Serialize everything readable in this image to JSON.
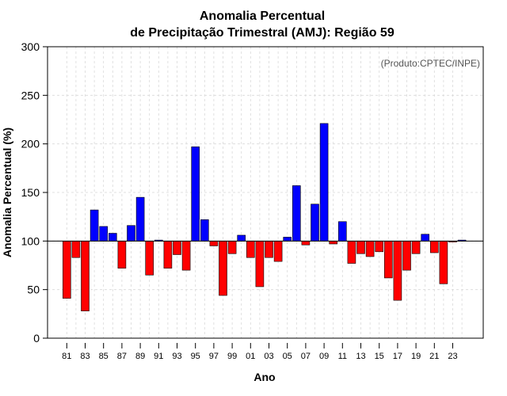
{
  "chart_data": {
    "type": "bar",
    "title_line1": "Anomalia Percentual",
    "title_line2": "de Precipitação Trimestral (AMJ): Região 59",
    "credit": "(Produto:CPTEC/INPE)",
    "xlabel": "Ano",
    "ylabel": "Anomalia Percentual (%)",
    "ylim": [
      0,
      300
    ],
    "yticks": [
      0,
      50,
      100,
      150,
      200,
      250,
      300
    ],
    "baseline": 100,
    "grid": true,
    "colors": {
      "above": "#0000ff",
      "below": "#ff0000",
      "edge": "#000000"
    },
    "categories": [
      "81",
      "82",
      "83",
      "84",
      "85",
      "86",
      "87",
      "88",
      "89",
      "90",
      "91",
      "92",
      "93",
      "94",
      "95",
      "96",
      "97",
      "98",
      "99",
      "00",
      "01",
      "02",
      "03",
      "04",
      "05",
      "06",
      "07",
      "08",
      "09",
      "10",
      "11",
      "12",
      "13",
      "14",
      "15",
      "16",
      "17",
      "18",
      "19",
      "20",
      "21",
      "22",
      "23",
      "24"
    ],
    "xtick_labels": [
      "81",
      "83",
      "85",
      "87",
      "89",
      "91",
      "93",
      "95",
      "97",
      "99",
      "01",
      "03",
      "05",
      "07",
      "09",
      "11",
      "13",
      "15",
      "17",
      "19",
      "21",
      "23"
    ],
    "values": [
      41,
      83,
      28,
      132,
      115,
      108,
      72,
      116,
      145,
      65,
      101,
      72,
      86,
      70,
      197,
      122,
      95,
      44,
      87,
      106,
      83,
      53,
      83,
      79,
      104,
      157,
      96,
      138,
      221,
      97,
      120,
      77,
      87,
      84,
      89,
      62,
      39,
      70,
      87,
      107,
      88,
      56,
      99,
      101
    ]
  }
}
